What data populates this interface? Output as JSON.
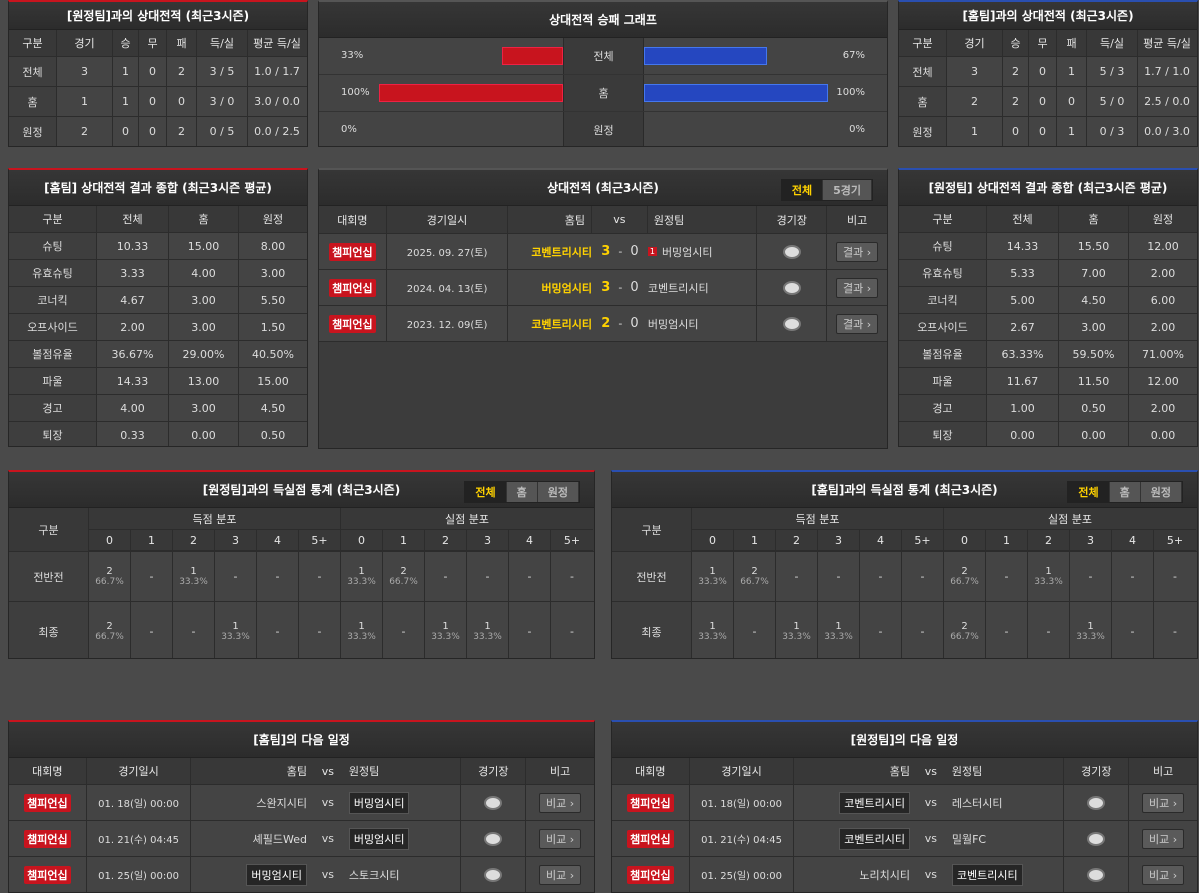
{
  "h2h_vs_away": {
    "title": "[원정팀]과의 상대전적 (최근3시즌)",
    "headers": [
      "구분",
      "경기",
      "승",
      "무",
      "패",
      "득/실",
      "평균 득/실"
    ],
    "rows": [
      [
        "전체",
        "3",
        "1",
        "0",
        "2",
        "3 / 5",
        "1.0 / 1.7"
      ],
      [
        "홈",
        "1",
        "1",
        "0",
        "0",
        "3 / 0",
        "3.0 / 0.0"
      ],
      [
        "원정",
        "2",
        "0",
        "0",
        "2",
        "0 / 5",
        "0.0 / 2.5"
      ]
    ]
  },
  "win_graph": {
    "title": "상대전적 승패 그래프",
    "rows": [
      {
        "label": "전체",
        "left": 33,
        "left_label": "33%",
        "right": 67,
        "right_label": "67%"
      },
      {
        "label": "홈",
        "left": 100,
        "left_label": "100%",
        "right": 100,
        "right_label": "100%"
      },
      {
        "label": "원정",
        "left": 0,
        "left_label": "0%",
        "right": 0,
        "right_label": "0%"
      }
    ]
  },
  "h2h_vs_home": {
    "title": "[홈팀]과의 상대전적 (최근3시즌)",
    "headers": [
      "구분",
      "경기",
      "승",
      "무",
      "패",
      "득/실",
      "평균 득/실"
    ],
    "rows": [
      [
        "전체",
        "3",
        "2",
        "0",
        "1",
        "5 / 3",
        "1.7 / 1.0"
      ],
      [
        "홈",
        "2",
        "2",
        "0",
        "0",
        "5 / 0",
        "2.5 / 0.0"
      ],
      [
        "원정",
        "1",
        "0",
        "0",
        "1",
        "0 / 3",
        "0.0 / 3.0"
      ]
    ]
  },
  "summary_home": {
    "title": "[홈팀] 상대전적 결과 종합 (최근3시즌 평균)",
    "headers": [
      "구분",
      "전체",
      "홈",
      "원정"
    ],
    "rows": [
      [
        "슈팅",
        "10.33",
        "15.00",
        "8.00"
      ],
      [
        "유효슈팅",
        "3.33",
        "4.00",
        "3.00"
      ],
      [
        "코너킥",
        "4.67",
        "3.00",
        "5.50"
      ],
      [
        "오프사이드",
        "2.00",
        "3.00",
        "1.50"
      ],
      [
        "볼점유율",
        "36.67%",
        "29.00%",
        "40.50%"
      ],
      [
        "파울",
        "14.33",
        "13.00",
        "15.00"
      ],
      [
        "경고",
        "4.00",
        "3.00",
        "4.50"
      ],
      [
        "퇴장",
        "0.33",
        "0.00",
        "0.50"
      ]
    ]
  },
  "recent": {
    "title": "상대전적 (최근3시즌)",
    "tabs": [
      "전체",
      "5경기"
    ],
    "headers": [
      "대회명",
      "경기일시",
      "홈팀",
      "vs",
      "원정팀",
      "경기장",
      "비고"
    ],
    "score_sep": "-",
    "button": "결과",
    "rows": [
      {
        "league": "챔피언십",
        "date": "2025. 09. 27(토)",
        "home": "코벤트리시티",
        "score_home": "3",
        "score_away": "0",
        "away_red_cards": "1",
        "away": "버밍엄시티"
      },
      {
        "league": "챔피언십",
        "date": "2024. 04. 13(토)",
        "home": "버밍엄시티",
        "score_home": "3",
        "score_away": "0",
        "away": "코벤트리시티"
      },
      {
        "league": "챔피언십",
        "date": "2023. 12. 09(토)",
        "home": "코벤트리시티",
        "score_home": "2",
        "score_away": "0",
        "away": "버밍엄시티"
      }
    ]
  },
  "summary_away": {
    "title": "[원정팀] 상대전적 결과 종합 (최근3시즌 평균)",
    "headers": [
      "구분",
      "전체",
      "홈",
      "원정"
    ],
    "rows": [
      [
        "슈팅",
        "14.33",
        "15.50",
        "12.00"
      ],
      [
        "유효슈팅",
        "5.33",
        "7.00",
        "2.00"
      ],
      [
        "코너킥",
        "5.00",
        "4.50",
        "6.00"
      ],
      [
        "오프사이드",
        "2.67",
        "3.00",
        "2.00"
      ],
      [
        "볼점유율",
        "63.33%",
        "59.50%",
        "71.00%"
      ],
      [
        "파울",
        "11.67",
        "11.50",
        "12.00"
      ],
      [
        "경고",
        "1.00",
        "0.50",
        "2.00"
      ],
      [
        "퇴장",
        "0.00",
        "0.00",
        "0.00"
      ]
    ]
  },
  "goals_vs_away": {
    "title": "[원정팀]과의 득실점 통계 (최근3시즌)",
    "tabs": [
      "전체",
      "홈",
      "원정"
    ],
    "label_header": "구분",
    "groups": [
      "득점 분포",
      "실점 분포"
    ],
    "goals": [
      "0",
      "1",
      "2",
      "3",
      "4",
      "5+"
    ],
    "rows": [
      {
        "label": "전반전",
        "cells": [
          {
            "n": "2",
            "pct": "66.7%"
          },
          "-",
          {
            "n": "1",
            "pct": "33.3%"
          },
          "-",
          "-",
          "-",
          {
            "n": "1",
            "pct": "33.3%"
          },
          {
            "n": "2",
            "pct": "66.7%"
          },
          "-",
          "-",
          "-",
          "-"
        ]
      },
      {
        "label": "최종",
        "cells": [
          {
            "n": "2",
            "pct": "66.7%"
          },
          "-",
          "-",
          {
            "n": "1",
            "pct": "33.3%"
          },
          "-",
          "-",
          {
            "n": "1",
            "pct": "33.3%"
          },
          "-",
          {
            "n": "1",
            "pct": "33.3%"
          },
          {
            "n": "1",
            "pct": "33.3%"
          },
          "-",
          "-"
        ]
      }
    ]
  },
  "goals_vs_home": {
    "title": "[홈팀]과의 득실점 통계 (최근3시즌)",
    "tabs": [
      "전체",
      "홈",
      "원정"
    ],
    "label_header": "구분",
    "groups": [
      "득점 분포",
      "실점 분포"
    ],
    "goals": [
      "0",
      "1",
      "2",
      "3",
      "4",
      "5+"
    ],
    "rows": [
      {
        "label": "전반전",
        "cells": [
          {
            "n": "1",
            "pct": "33.3%"
          },
          {
            "n": "2",
            "pct": "66.7%"
          },
          "-",
          "-",
          "-",
          "-",
          {
            "n": "2",
            "pct": "66.7%"
          },
          "-",
          {
            "n": "1",
            "pct": "33.3%"
          },
          "-",
          "-",
          "-"
        ]
      },
      {
        "label": "최종",
        "cells": [
          {
            "n": "1",
            "pct": "33.3%"
          },
          "-",
          {
            "n": "1",
            "pct": "33.3%"
          },
          {
            "n": "1",
            "pct": "33.3%"
          },
          "-",
          "-",
          {
            "n": "2",
            "pct": "66.7%"
          },
          "-",
          "-",
          {
            "n": "1",
            "pct": "33.3%"
          },
          "-",
          "-"
        ]
      }
    ]
  },
  "next_home": {
    "title": "[홈팀]의 다음 일정",
    "headers": [
      "대회명",
      "경기일시",
      "홈팀",
      "vs",
      "원정팀",
      "경기장",
      "비고"
    ],
    "button": "비교",
    "rows": [
      {
        "league": "챔피언십",
        "date": "01. 18(일) 00:00",
        "home": "스완지시티",
        "away": "버밍엄시티",
        "highlight": "away"
      },
      {
        "league": "챔피언십",
        "date": "01. 21(수) 04:45",
        "home": "셰필드Wed",
        "away": "버밍엄시티",
        "highlight": "away"
      },
      {
        "league": "챔피언십",
        "date": "01. 25(일) 00:00",
        "home": "버밍엄시티",
        "away": "스토크시티",
        "highlight": "home"
      }
    ]
  },
  "next_away": {
    "title": "[원정팀]의 다음 일정",
    "headers": [
      "대회명",
      "경기일시",
      "홈팀",
      "vs",
      "원정팀",
      "경기장",
      "비고"
    ],
    "button": "비교",
    "rows": [
      {
        "league": "챔피언십",
        "date": "01. 18(일) 00:00",
        "home": "코벤트리시티",
        "away": "레스터시티",
        "highlight": "home"
      },
      {
        "league": "챔피언십",
        "date": "01. 21(수) 04:45",
        "home": "코벤트리시티",
        "away": "밀월FC",
        "highlight": "home"
      },
      {
        "league": "챔피언십",
        "date": "01. 25(일) 00:00",
        "home": "노리치시티",
        "away": "코벤트리시티",
        "highlight": "away"
      }
    ]
  }
}
